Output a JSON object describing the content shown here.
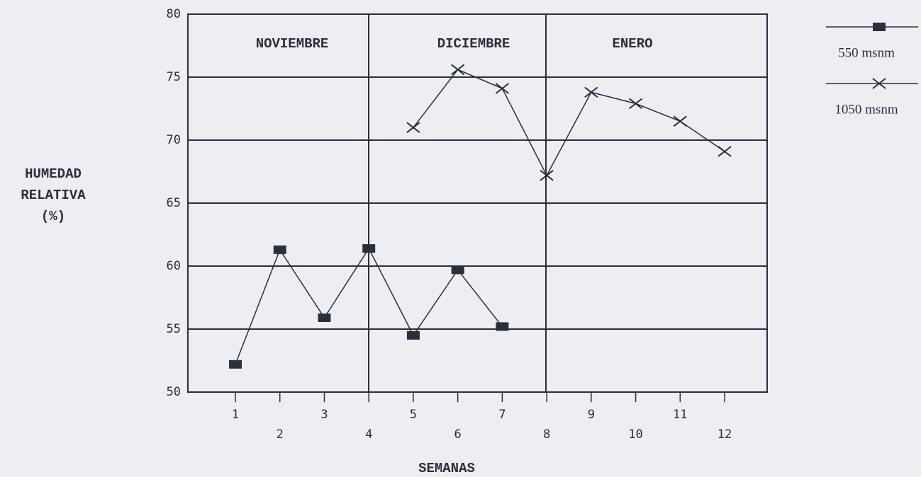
{
  "chart_data": {
    "type": "line",
    "y_label": [
      "HUMEDAD",
      "RELATIVA",
      "(%)"
    ],
    "x_label": "SEMANAS",
    "annotations": [
      "NOVIEMBRE",
      "DICIEMBRE",
      "ENERO"
    ],
    "categories": [
      "1",
      "2",
      "3",
      "4",
      "5",
      "6",
      "7",
      "8",
      "9",
      "10",
      "11",
      "12"
    ],
    "series": [
      {
        "name": "550 msnm",
        "color": "#2a2f3a",
        "marker": "square",
        "values": [
          52.2,
          61.3,
          55.9,
          61.4,
          54.5,
          59.7,
          55.2,
          null,
          null,
          null,
          null,
          null
        ]
      },
      {
        "name": "1050 msnm",
        "color": "#2a2f3a",
        "marker": "x",
        "values": [
          null,
          null,
          null,
          null,
          71.0,
          75.6,
          74.1,
          67.2,
          73.8,
          72.9,
          71.5,
          69.1
        ]
      }
    ],
    "ylim": [
      50,
      80
    ],
    "yticks": [
      50,
      55,
      60,
      65,
      70,
      75,
      80
    ],
    "grid": true
  }
}
